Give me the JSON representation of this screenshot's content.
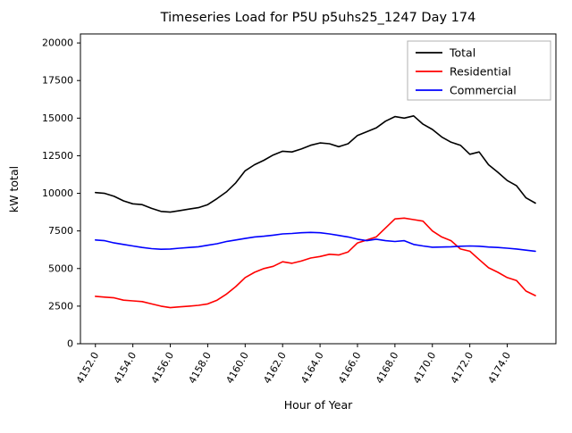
{
  "chart_data": {
    "type": "line",
    "title": "Timeseries Load for P5U p5uhs25_1247  Day 174",
    "xlabel": "Hour of Year",
    "ylabel": "kW total",
    "xlim": [
      4151.2,
      4176.6
    ],
    "ylim": [
      0,
      20600
    ],
    "grid": false,
    "legend_position": "upper right",
    "xticks": [
      4152,
      4154,
      4156,
      4158,
      4160,
      4162,
      4164,
      4166,
      4168,
      4170,
      4172,
      4174
    ],
    "xtick_labels": [
      "4152.0",
      "4154.0",
      "4156.0",
      "4158.0",
      "4160.0",
      "4162.0",
      "4164.0",
      "4166.0",
      "4168.0",
      "4170.0",
      "4172.0",
      "4174.0"
    ],
    "yticks": [
      0,
      2500,
      5000,
      7500,
      10000,
      12500,
      15000,
      17500,
      20000
    ],
    "ytick_labels": [
      "0",
      "2500",
      "5000",
      "7500",
      "10000",
      "12500",
      "15000",
      "17500",
      "20000"
    ],
    "x": [
      4152.0,
      4152.5,
      4153.0,
      4153.5,
      4154.0,
      4154.5,
      4155.0,
      4155.5,
      4156.0,
      4156.5,
      4157.0,
      4157.5,
      4158.0,
      4158.5,
      4159.0,
      4159.5,
      4160.0,
      4160.5,
      4161.0,
      4161.5,
      4162.0,
      4162.5,
      4163.0,
      4163.5,
      4164.0,
      4164.5,
      4165.0,
      4165.5,
      4166.0,
      4166.5,
      4167.0,
      4167.5,
      4168.0,
      4168.5,
      4169.0,
      4169.5,
      4170.0,
      4170.5,
      4171.0,
      4171.5,
      4172.0,
      4172.5,
      4173.0,
      4173.5,
      4174.0,
      4174.5,
      4175.0,
      4175.5
    ],
    "series": [
      {
        "name": "Total",
        "color": "#000000",
        "values": [
          10050,
          10000,
          9800,
          9500,
          9300,
          9250,
          9000,
          8800,
          8750,
          8850,
          8950,
          9050,
          9250,
          9650,
          10100,
          10700,
          11500,
          11900,
          12200,
          12550,
          12800,
          12750,
          12950,
          13200,
          13350,
          13300,
          13100,
          13300,
          13850,
          14100,
          14350,
          14800,
          15100,
          15000,
          15150,
          14600,
          14250,
          13750,
          13400,
          13200,
          12600,
          12750,
          11900,
          11400,
          10850,
          10500,
          9700,
          9350
        ]
      },
      {
        "name": "Residential",
        "color": "#ff0000",
        "values": [
          3150,
          3100,
          3050,
          2900,
          2850,
          2800,
          2650,
          2500,
          2400,
          2450,
          2500,
          2550,
          2650,
          2900,
          3300,
          3800,
          4400,
          4750,
          5000,
          5150,
          5450,
          5350,
          5500,
          5700,
          5800,
          5950,
          5900,
          6100,
          6700,
          6900,
          7100,
          7700,
          8300,
          8350,
          8250,
          8150,
          7500,
          7100,
          6850,
          6300,
          6150,
          5600,
          5050,
          4750,
          4400,
          4200,
          3500,
          3200
        ]
      },
      {
        "name": "Commercial",
        "color": "#0000ff",
        "values": [
          6900,
          6850,
          6700,
          6600,
          6500,
          6400,
          6320,
          6280,
          6300,
          6350,
          6400,
          6450,
          6550,
          6650,
          6800,
          6900,
          7000,
          7100,
          7150,
          7220,
          7300,
          7330,
          7380,
          7400,
          7380,
          7300,
          7200,
          7100,
          6950,
          6850,
          6950,
          6850,
          6800,
          6850,
          6600,
          6500,
          6420,
          6430,
          6450,
          6480,
          6500,
          6480,
          6430,
          6400,
          6350,
          6300,
          6220,
          6150
        ]
      }
    ]
  }
}
